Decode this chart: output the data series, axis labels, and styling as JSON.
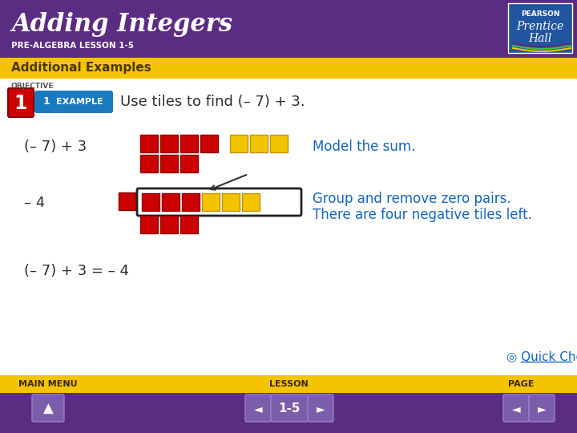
{
  "title": "Adding Integers",
  "subtitle": "PRE-ALGEBRA LESSON 1-5",
  "header_bg": "#5b2d82",
  "yellow_bar_bg": "#f5c400",
  "yellow_bar_text": "Additional Examples",
  "header_text_color": "#ffffff",
  "yellow_text_color": "#4a3800",
  "body_bg": "#ffffff",
  "footer_bg": "#5b2d82",
  "footer_yellow_bg": "#f5c400",
  "example_label_bg": "#2e7db5",
  "instruction": "Use tiles to find (– 7) + 3.",
  "label1": "(– 7) + 3",
  "label2": "– 4",
  "label3": "(– 7) + 3 = – 4",
  "desc1": "Model the sum.",
  "desc2_line1": "Group and remove zero pairs.",
  "desc2_line2": "There are four negative tiles left.",
  "text_color_blue": "#1565c0",
  "text_color_dark": "#2d2d2d",
  "red_tile": "#cc0000",
  "red_tile_edge": "#8b0000",
  "yellow_tile": "#f5c400",
  "yellow_tile_edge": "#b8960c",
  "footer_labels": [
    "MAIN MENU",
    "LESSON",
    "PAGE"
  ],
  "lesson_num": "1-5",
  "quick_check": "Quick Check",
  "objective_color": "#555555"
}
